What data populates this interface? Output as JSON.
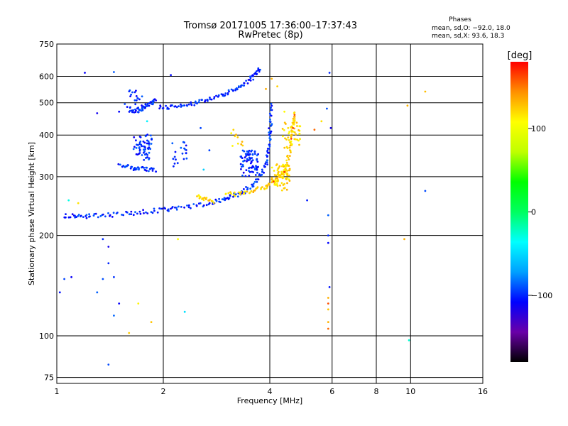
{
  "chart_data": {
    "type": "scatter",
    "title": "Tromsø 20171005 17:36:00–17:37:43",
    "subtitle": "RwPretec (8p)",
    "xlabel": "Frequency [MHz]",
    "ylabel": "Stationary phase Virtual Height [km]",
    "x_scale": "log",
    "y_scale": "log",
    "xlim": [
      1,
      16
    ],
    "ylim": [
      72,
      750
    ],
    "x_ticks": [
      1,
      2,
      4,
      6,
      8,
      10,
      16
    ],
    "y_ticks": [
      75,
      100,
      200,
      300,
      400,
      500,
      600,
      750
    ],
    "grid": true,
    "stats": {
      "heading": "Phases",
      "line_o": "mean, sd,O: −92.0, 18.0",
      "line_x": "mean, sd,X:  93.6, 18.3"
    },
    "colorbar": {
      "label": "[deg]",
      "min": -180,
      "max": 180,
      "ticks": [
        100,
        0,
        -100
      ],
      "tick_labels": [
        "100",
        "0",
        "−100"
      ],
      "colormap": [
        "#000000",
        "#6a00a8",
        "#0000ff",
        "#00a0ff",
        "#00ffff",
        "#00ff60",
        "#00ff00",
        "#c0ff00",
        "#ffff00",
        "#ff9000",
        "#ff0000"
      ]
    },
    "series": [
      {
        "mode": "O",
        "phase": -100,
        "traces": [
          {
            "points": [
              [
                1.05,
                230
              ],
              [
                1.15,
                228
              ],
              [
                1.25,
                229
              ],
              [
                1.4,
                230
              ],
              [
                1.6,
                233
              ],
              [
                1.8,
                236
              ],
              [
                2.0,
                239
              ],
              [
                2.2,
                241
              ],
              [
                2.5,
                246
              ],
              [
                2.8,
                252
              ],
              [
                3.0,
                258
              ],
              [
                3.2,
                264
              ],
              [
                3.4,
                272
              ],
              [
                3.6,
                284
              ],
              [
                3.8,
                305
              ],
              [
                3.9,
                330
              ],
              [
                3.95,
                360
              ],
              [
                4.0,
                400
              ],
              [
                4.02,
                440
              ],
              [
                4.05,
                500
              ]
            ]
          },
          {
            "points": [
              [
                1.95,
                485
              ],
              [
                2.1,
                487
              ],
              [
                2.3,
                492
              ],
              [
                2.5,
                500
              ],
              [
                2.7,
                510
              ],
              [
                2.9,
                523
              ],
              [
                3.1,
                540
              ],
              [
                3.3,
                560
              ],
              [
                3.5,
                582
              ],
              [
                3.65,
                610
              ],
              [
                3.75,
                635
              ]
            ]
          },
          {
            "points": [
              [
                1.5,
                325
              ],
              [
                1.6,
                320
              ],
              [
                1.7,
                317
              ],
              [
                1.8,
                315
              ],
              [
                1.9,
                313
              ]
            ]
          },
          {
            "points": [
              [
                1.6,
                470
              ],
              [
                1.7,
                475
              ],
              [
                1.75,
                480
              ],
              [
                1.8,
                490
              ],
              [
                1.85,
                500
              ],
              [
                1.9,
                510
              ]
            ]
          }
        ],
        "clusters": [
          {
            "x": 1.75,
            "y": 370,
            "count": 60
          },
          {
            "x": 1.65,
            "y": 500,
            "count": 20
          },
          {
            "x": 2.2,
            "y": 350,
            "count": 20
          },
          {
            "x": 3.5,
            "y": 330,
            "count": 80
          }
        ],
        "scatter": [
          [
            1.2,
            615
          ],
          [
            1.45,
            618
          ],
          [
            2.1,
            605
          ],
          [
            1.5,
            470
          ],
          [
            1.3,
            465
          ],
          [
            2.55,
            420
          ],
          [
            2.7,
            360
          ],
          [
            5.9,
            615
          ],
          [
            5.8,
            480
          ],
          [
            5.95,
            420
          ],
          [
            5.85,
            230
          ],
          [
            5.85,
            200
          ],
          [
            5.85,
            190
          ],
          [
            5.9,
            140
          ],
          [
            1.35,
            195
          ],
          [
            1.4,
            185
          ],
          [
            1.4,
            165
          ],
          [
            1.35,
            148
          ],
          [
            1.45,
            150
          ],
          [
            1.5,
            125
          ],
          [
            1.45,
            115
          ],
          [
            1.4,
            82
          ],
          [
            1.3,
            135
          ],
          [
            1.1,
            150
          ],
          [
            1.05,
            148
          ],
          [
            1.02,
            135
          ],
          [
            11,
            272
          ],
          [
            5.1,
            255
          ]
        ]
      },
      {
        "mode": "X",
        "phase": 120,
        "traces": [
          {
            "points": [
              [
                3.0,
                265
              ],
              [
                3.3,
                267
              ],
              [
                3.6,
                272
              ],
              [
                3.9,
                280
              ],
              [
                4.1,
                288
              ],
              [
                4.3,
                300
              ],
              [
                4.45,
                320
              ],
              [
                4.55,
                350
              ],
              [
                4.6,
                385
              ],
              [
                4.65,
                430
              ],
              [
                4.68,
                470
              ]
            ]
          },
          {
            "points": [
              [
                2.5,
                262
              ],
              [
                2.6,
                258
              ],
              [
                2.8,
                253
              ]
            ]
          }
        ],
        "clusters": [
          {
            "x": 4.3,
            "y": 300,
            "count": 70
          },
          {
            "x": 4.6,
            "y": 400,
            "count": 40
          },
          {
            "x": 3.2,
            "y": 390,
            "count": 10
          }
        ],
        "scatter": [
          [
            4.05,
            590
          ],
          [
            4.2,
            560
          ],
          [
            3.9,
            550
          ],
          [
            4.4,
            470
          ],
          [
            5.6,
            440
          ],
          [
            9.8,
            490
          ],
          [
            11,
            540
          ],
          [
            9.6,
            195
          ],
          [
            1.15,
            250
          ],
          [
            2.2,
            195
          ],
          [
            1.85,
            110
          ],
          [
            1.6,
            102
          ],
          [
            1.7,
            125
          ],
          [
            5.85,
            130
          ],
          [
            5.85,
            120
          ],
          [
            5.85,
            110
          ]
        ]
      },
      {
        "mode": "X",
        "phase": 160,
        "scatter": [
          [
            4.6,
            390
          ],
          [
            4.65,
            420
          ],
          [
            4.7,
            460
          ],
          [
            5.35,
            415
          ],
          [
            5.85,
            105
          ],
          [
            5.85,
            125
          ],
          [
            4.1,
            290
          ],
          [
            4.4,
            310
          ]
        ]
      },
      {
        "mode": "O",
        "phase": -40,
        "scatter": [
          [
            1.08,
            255
          ],
          [
            2.3,
            118
          ],
          [
            9.9,
            97
          ],
          [
            1.8,
            440
          ],
          [
            2.6,
            315
          ]
        ]
      }
    ]
  }
}
